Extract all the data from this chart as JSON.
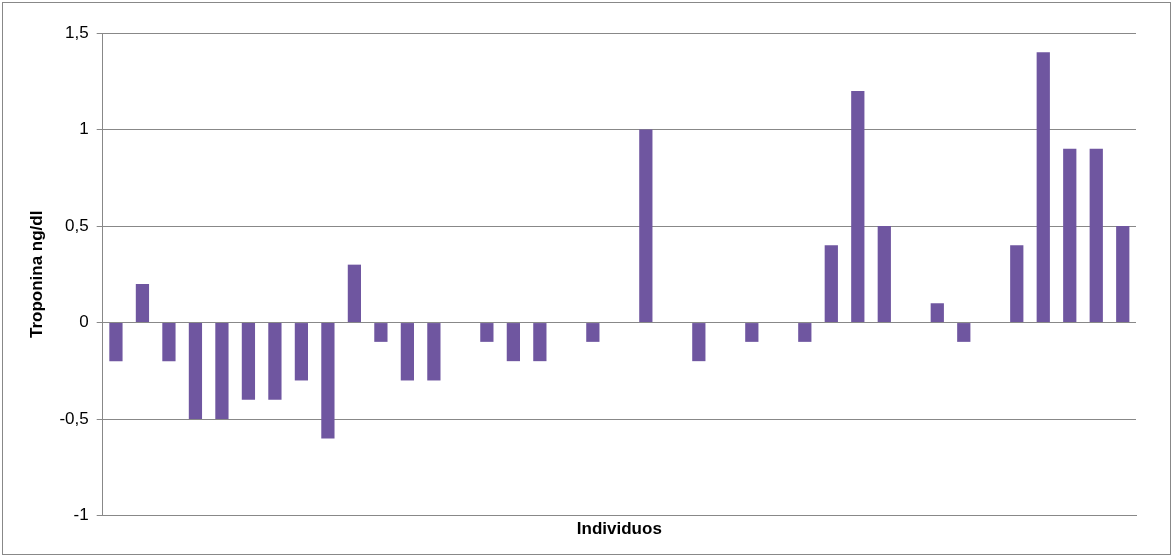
{
  "chart_data": {
    "type": "bar",
    "xlabel": "Individuos",
    "ylabel": "Troponina ng/dl",
    "categories": [
      null,
      null,
      null,
      null,
      null,
      null,
      null,
      null,
      null,
      null,
      null,
      null,
      null,
      null,
      null,
      null,
      null,
      null,
      null,
      null,
      null,
      null,
      null,
      null,
      null,
      null,
      null,
      null,
      null,
      null,
      null,
      null,
      null,
      null,
      null,
      null,
      null,
      null,
      null
    ],
    "values": [
      -0.2,
      0.2,
      -0.2,
      -0.5,
      -0.5,
      -0.4,
      -0.4,
      -0.3,
      -0.6,
      0.3,
      -0.1,
      -0.3,
      -0.3,
      0,
      -0.1,
      -0.2,
      -0.2,
      0,
      -0.1,
      0,
      1.0,
      0,
      -0.2,
      0,
      -0.1,
      0,
      -0.1,
      0.4,
      1.2,
      0.5,
      0,
      0.1,
      -0.1,
      0,
      0.4,
      1.4,
      0.9,
      0.9,
      0.5
    ],
    "color": "#6f56a0",
    "ylim": [
      -1,
      1.5
    ],
    "yticks": [
      {
        "value": -1,
        "label": "-1"
      },
      {
        "value": -0.5,
        "label": "-0,5"
      },
      {
        "value": 0,
        "label": "0"
      },
      {
        "value": 0.5,
        "label": "0,5"
      },
      {
        "value": 1,
        "label": "1"
      },
      {
        "value": 1.5,
        "label": "1,5"
      }
    ],
    "grid": "y",
    "legend": false
  }
}
